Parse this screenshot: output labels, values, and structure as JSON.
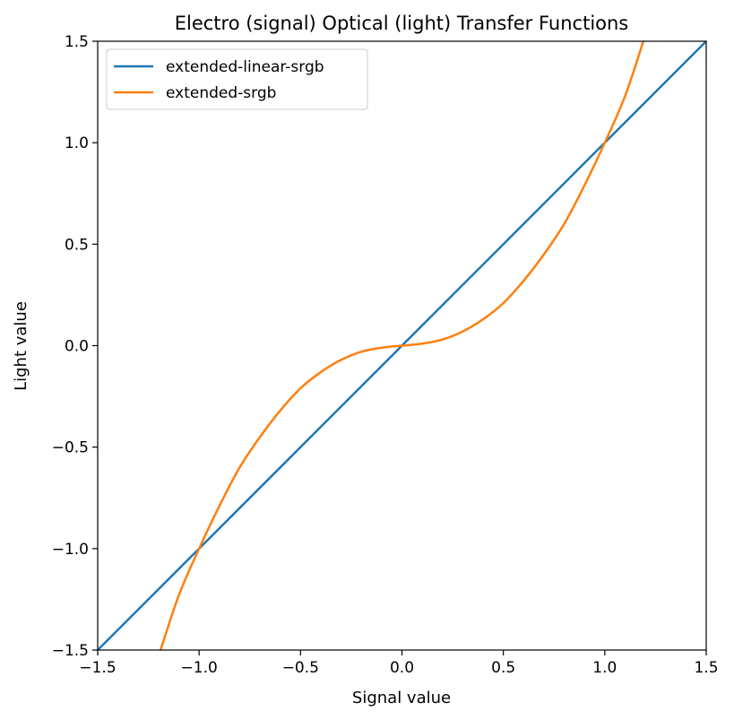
{
  "chart_data": {
    "type": "line",
    "title": "Electro (signal) Optical (light) Transfer Functions",
    "xlabel": "Signal value",
    "ylabel": "Light value",
    "xlim": [
      -1.5,
      1.5
    ],
    "ylim": [
      -1.5,
      1.5
    ],
    "xticks": [
      -1.5,
      -1.0,
      -0.5,
      0.0,
      0.5,
      1.0,
      1.5
    ],
    "yticks": [
      -1.5,
      -1.0,
      -0.5,
      0.0,
      0.5,
      1.0,
      1.5
    ],
    "xtick_labels": [
      "−1.5",
      "−1.0",
      "−0.5",
      "0.0",
      "0.5",
      "1.0",
      "1.5"
    ],
    "ytick_labels": [
      "−1.5",
      "−1.0",
      "−0.5",
      "0.0",
      "0.5",
      "1.0",
      "1.5"
    ],
    "grid": false,
    "legend_position": "upper-left",
    "series": [
      {
        "name": "extended-linear-srgb",
        "color": "#1f77b4",
        "x": [
          -1.5,
          -1.0,
          -0.5,
          0.0,
          0.5,
          1.0,
          1.5
        ],
        "y": [
          -1.5,
          -1.0,
          -0.5,
          0.0,
          0.5,
          1.0,
          1.5
        ]
      },
      {
        "name": "extended-srgb",
        "color": "#ff7f0e",
        "x": [
          -1.19,
          -1.1,
          -1.0,
          -0.9,
          -0.8,
          -0.7,
          -0.6,
          -0.5,
          -0.4,
          -0.3,
          -0.2,
          -0.1,
          0.0,
          0.1,
          0.2,
          0.3,
          0.4,
          0.5,
          0.6,
          0.7,
          0.8,
          0.9,
          1.0,
          1.1,
          1.19
        ],
        "y": [
          -1.5,
          -1.23,
          -1.0,
          -0.79,
          -0.6,
          -0.45,
          -0.32,
          -0.21,
          -0.13,
          -0.07,
          -0.03,
          -0.01,
          0.0,
          0.01,
          0.03,
          0.07,
          0.13,
          0.21,
          0.32,
          0.45,
          0.6,
          0.79,
          1.0,
          1.23,
          1.5
        ]
      }
    ]
  }
}
